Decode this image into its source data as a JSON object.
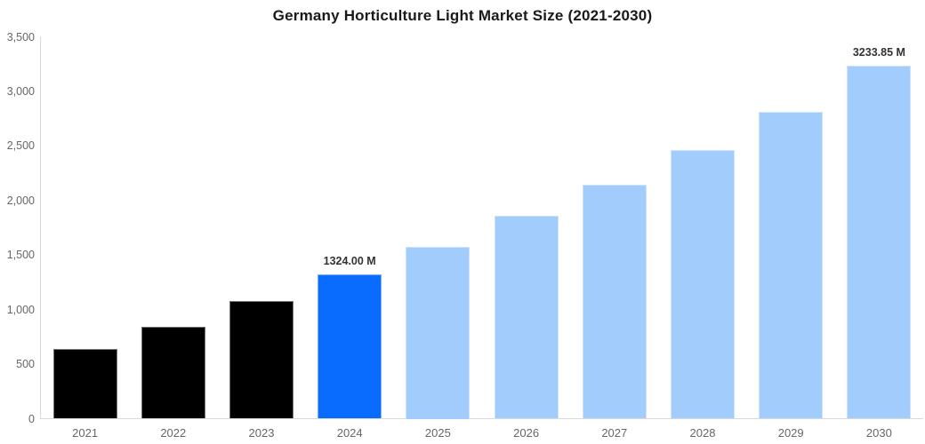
{
  "colors": {
    "past_bar": "#000000",
    "current_bar": "#0a6cff",
    "forecast_bar": "#a2ccfc",
    "axis_line": "#d9d9d9",
    "tick_text": "#666666",
    "title_text": "#1a1a1a",
    "data_label_text": "#333333",
    "background": "#ffffff"
  },
  "chart_data": {
    "type": "bar",
    "title": "Germany Horticulture Light Market Size (2021-2030)",
    "categories": [
      "2021",
      "2022",
      "2023",
      "2024",
      "2025",
      "2026",
      "2027",
      "2028",
      "2029",
      "2030"
    ],
    "values": [
      640,
      840,
      1075,
      1324,
      1575,
      1858,
      2142,
      2460,
      2812,
      3233.85
    ],
    "bar_colors": [
      "#000000",
      "#000000",
      "#000000",
      "#0a6cff",
      "#a2ccfc",
      "#a2ccfc",
      "#a2ccfc",
      "#a2ccfc",
      "#a2ccfc",
      "#a2ccfc"
    ],
    "data_labels": [
      "",
      "",
      "",
      "1324.00 M",
      "",
      "",
      "",
      "",
      "",
      "3233.85 M"
    ],
    "xlabel": "",
    "ylabel": "",
    "ylim": [
      0,
      3500
    ],
    "yticks": [
      0,
      500,
      1000,
      1500,
      2000,
      2500,
      3000,
      3500
    ],
    "ytick_labels": [
      "0",
      "500",
      "1,000",
      "1,500",
      "2,000",
      "2,500",
      "3,000",
      "3,500"
    ],
    "grid": false,
    "legend": false,
    "series_note": "black = historical 2021-2023, bright blue = current year 2024, light blue = forecast 2025-2030"
  }
}
